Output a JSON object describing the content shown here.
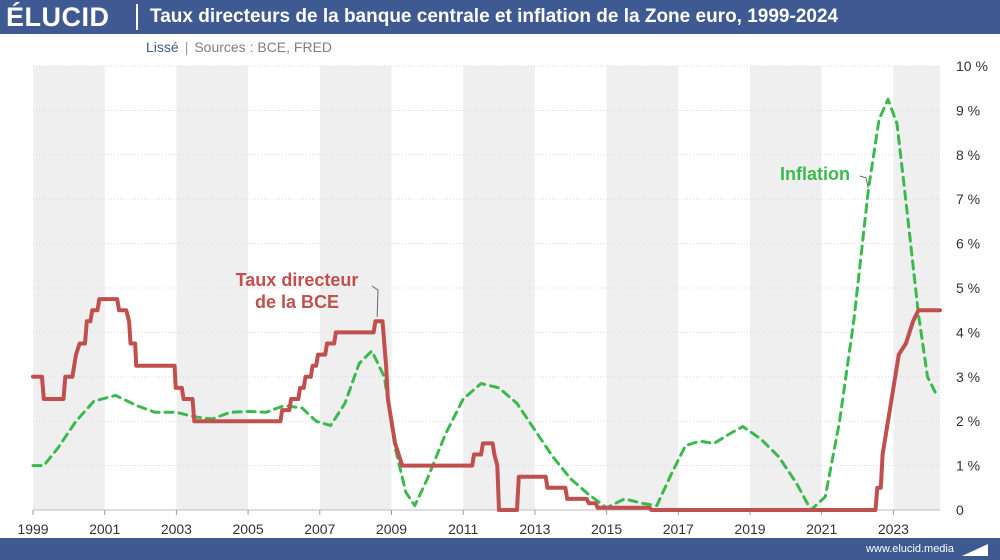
{
  "header": {
    "logo": "ÉLUCID",
    "title": "Taux directeurs de la banque centrale et inflation de la Zone euro, 1999-2024"
  },
  "subtitle": {
    "mode": "Lissé",
    "separator": "|",
    "sources": "Sources : BCE, FRED"
  },
  "footer": {
    "url": "www.elucid.media"
  },
  "colors": {
    "header_bg": "#3f5a93",
    "rate": "#c0504d",
    "inflation": "#3cb94e",
    "band": "#efefef"
  },
  "chart_data": {
    "type": "line",
    "title": "Taux directeurs de la banque centrale et inflation de la Zone euro, 1999-2024",
    "xlabel": "",
    "ylabel": "",
    "xlim": [
      1999,
      2024.3
    ],
    "ylim": [
      0,
      10
    ],
    "x_ticks": [
      "1999",
      "2001",
      "2003",
      "2005",
      "2007",
      "2009",
      "2011",
      "2013",
      "2015",
      "2017",
      "2019",
      "2021",
      "2023"
    ],
    "y_ticks": [
      "0",
      "1 %",
      "2 %",
      "3 %",
      "4 %",
      "5 %",
      "6 %",
      "7 %",
      "8 %",
      "9 %",
      "10 %"
    ],
    "series": [
      {
        "name": "Taux directeur de la BCE",
        "label_lines": [
          "Taux directeur",
          "de la BCE"
        ],
        "style": "solid",
        "points": [
          [
            1999.0,
            3.0
          ],
          [
            1999.25,
            3.0
          ],
          [
            1999.3,
            2.5
          ],
          [
            1999.85,
            2.5
          ],
          [
            1999.9,
            3.0
          ],
          [
            2000.1,
            3.0
          ],
          [
            2000.15,
            3.25
          ],
          [
            2000.2,
            3.5
          ],
          [
            2000.3,
            3.75
          ],
          [
            2000.45,
            3.75
          ],
          [
            2000.5,
            4.25
          ],
          [
            2000.6,
            4.25
          ],
          [
            2000.65,
            4.5
          ],
          [
            2000.8,
            4.5
          ],
          [
            2000.85,
            4.75
          ],
          [
            2001.35,
            4.75
          ],
          [
            2001.4,
            4.5
          ],
          [
            2001.6,
            4.5
          ],
          [
            2001.68,
            4.25
          ],
          [
            2001.72,
            3.75
          ],
          [
            2001.85,
            3.75
          ],
          [
            2001.88,
            3.25
          ],
          [
            2002.95,
            3.25
          ],
          [
            2002.98,
            2.75
          ],
          [
            2003.15,
            2.75
          ],
          [
            2003.2,
            2.5
          ],
          [
            2003.45,
            2.5
          ],
          [
            2003.5,
            2.0
          ],
          [
            2005.9,
            2.0
          ],
          [
            2005.95,
            2.25
          ],
          [
            2006.15,
            2.25
          ],
          [
            2006.2,
            2.5
          ],
          [
            2006.4,
            2.5
          ],
          [
            2006.45,
            2.75
          ],
          [
            2006.55,
            2.75
          ],
          [
            2006.6,
            3.0
          ],
          [
            2006.75,
            3.0
          ],
          [
            2006.8,
            3.25
          ],
          [
            2006.9,
            3.25
          ],
          [
            2006.95,
            3.5
          ],
          [
            2007.15,
            3.5
          ],
          [
            2007.2,
            3.75
          ],
          [
            2007.4,
            3.75
          ],
          [
            2007.45,
            4.0
          ],
          [
            2008.5,
            4.0
          ],
          [
            2008.55,
            4.25
          ],
          [
            2008.75,
            4.25
          ],
          [
            2008.8,
            3.75
          ],
          [
            2008.85,
            3.25
          ],
          [
            2008.9,
            2.5
          ],
          [
            2009.0,
            2.0
          ],
          [
            2009.1,
            1.5
          ],
          [
            2009.2,
            1.25
          ],
          [
            2009.3,
            1.0
          ],
          [
            2011.25,
            1.0
          ],
          [
            2011.3,
            1.25
          ],
          [
            2011.5,
            1.25
          ],
          [
            2011.55,
            1.5
          ],
          [
            2011.82,
            1.5
          ],
          [
            2011.87,
            1.25
          ],
          [
            2011.95,
            1.0
          ],
          [
            2012.0,
            0.0
          ],
          [
            2012.5,
            0.0
          ],
          [
            2012.55,
            0.75
          ],
          [
            2013.3,
            0.75
          ],
          [
            2013.35,
            0.5
          ],
          [
            2013.85,
            0.5
          ],
          [
            2013.9,
            0.25
          ],
          [
            2014.45,
            0.25
          ],
          [
            2014.5,
            0.15
          ],
          [
            2014.7,
            0.15
          ],
          [
            2014.75,
            0.05
          ],
          [
            2016.2,
            0.05
          ],
          [
            2016.25,
            0.0
          ],
          [
            2022.5,
            0.0
          ],
          [
            2022.55,
            0.5
          ],
          [
            2022.65,
            0.5
          ],
          [
            2022.7,
            1.25
          ],
          [
            2022.85,
            2.0
          ],
          [
            2022.95,
            2.5
          ],
          [
            2023.05,
            3.0
          ],
          [
            2023.15,
            3.5
          ],
          [
            2023.35,
            3.75
          ],
          [
            2023.45,
            4.0
          ],
          [
            2023.55,
            4.25
          ],
          [
            2023.7,
            4.5
          ],
          [
            2024.1,
            4.5
          ],
          [
            2024.3,
            4.5
          ]
        ]
      },
      {
        "name": "Inflation",
        "label_lines": [
          "Inflation"
        ],
        "style": "dashed",
        "points": [
          [
            1999.0,
            1.0
          ],
          [
            1999.3,
            1.0
          ],
          [
            1999.7,
            1.4
          ],
          [
            2000.2,
            2.0
          ],
          [
            2000.7,
            2.45
          ],
          [
            2001.3,
            2.58
          ],
          [
            2001.9,
            2.35
          ],
          [
            2002.4,
            2.2
          ],
          [
            2003.0,
            2.2
          ],
          [
            2003.5,
            2.1
          ],
          [
            2004.0,
            2.05
          ],
          [
            2004.5,
            2.2
          ],
          [
            2005.0,
            2.22
          ],
          [
            2005.5,
            2.2
          ],
          [
            2006.0,
            2.35
          ],
          [
            2006.5,
            2.3
          ],
          [
            2006.9,
            2.0
          ],
          [
            2007.3,
            1.9
          ],
          [
            2007.7,
            2.4
          ],
          [
            2008.1,
            3.3
          ],
          [
            2008.45,
            3.58
          ],
          [
            2008.8,
            3.0
          ],
          [
            2009.1,
            1.4
          ],
          [
            2009.4,
            0.4
          ],
          [
            2009.65,
            0.1
          ],
          [
            2010.0,
            0.7
          ],
          [
            2010.5,
            1.7
          ],
          [
            2011.0,
            2.5
          ],
          [
            2011.5,
            2.85
          ],
          [
            2012.0,
            2.75
          ],
          [
            2012.5,
            2.4
          ],
          [
            2013.0,
            1.8
          ],
          [
            2013.5,
            1.2
          ],
          [
            2014.0,
            0.7
          ],
          [
            2014.5,
            0.35
          ],
          [
            2015.0,
            0.05
          ],
          [
            2015.5,
            0.25
          ],
          [
            2016.0,
            0.15
          ],
          [
            2016.4,
            0.1
          ],
          [
            2016.8,
            0.8
          ],
          [
            2017.2,
            1.45
          ],
          [
            2017.6,
            1.55
          ],
          [
            2018.0,
            1.5
          ],
          [
            2018.4,
            1.7
          ],
          [
            2018.8,
            1.88
          ],
          [
            2019.3,
            1.6
          ],
          [
            2019.8,
            1.2
          ],
          [
            2020.3,
            0.6
          ],
          [
            2020.7,
            0.0
          ],
          [
            2021.1,
            0.3
          ],
          [
            2021.5,
            2.0
          ],
          [
            2021.9,
            4.3
          ],
          [
            2022.3,
            7.2
          ],
          [
            2022.6,
            8.8
          ],
          [
            2022.85,
            9.25
          ],
          [
            2023.1,
            8.7
          ],
          [
            2023.4,
            6.6
          ],
          [
            2023.7,
            4.4
          ],
          [
            2023.95,
            3.0
          ],
          [
            2024.2,
            2.6
          ]
        ]
      }
    ]
  }
}
